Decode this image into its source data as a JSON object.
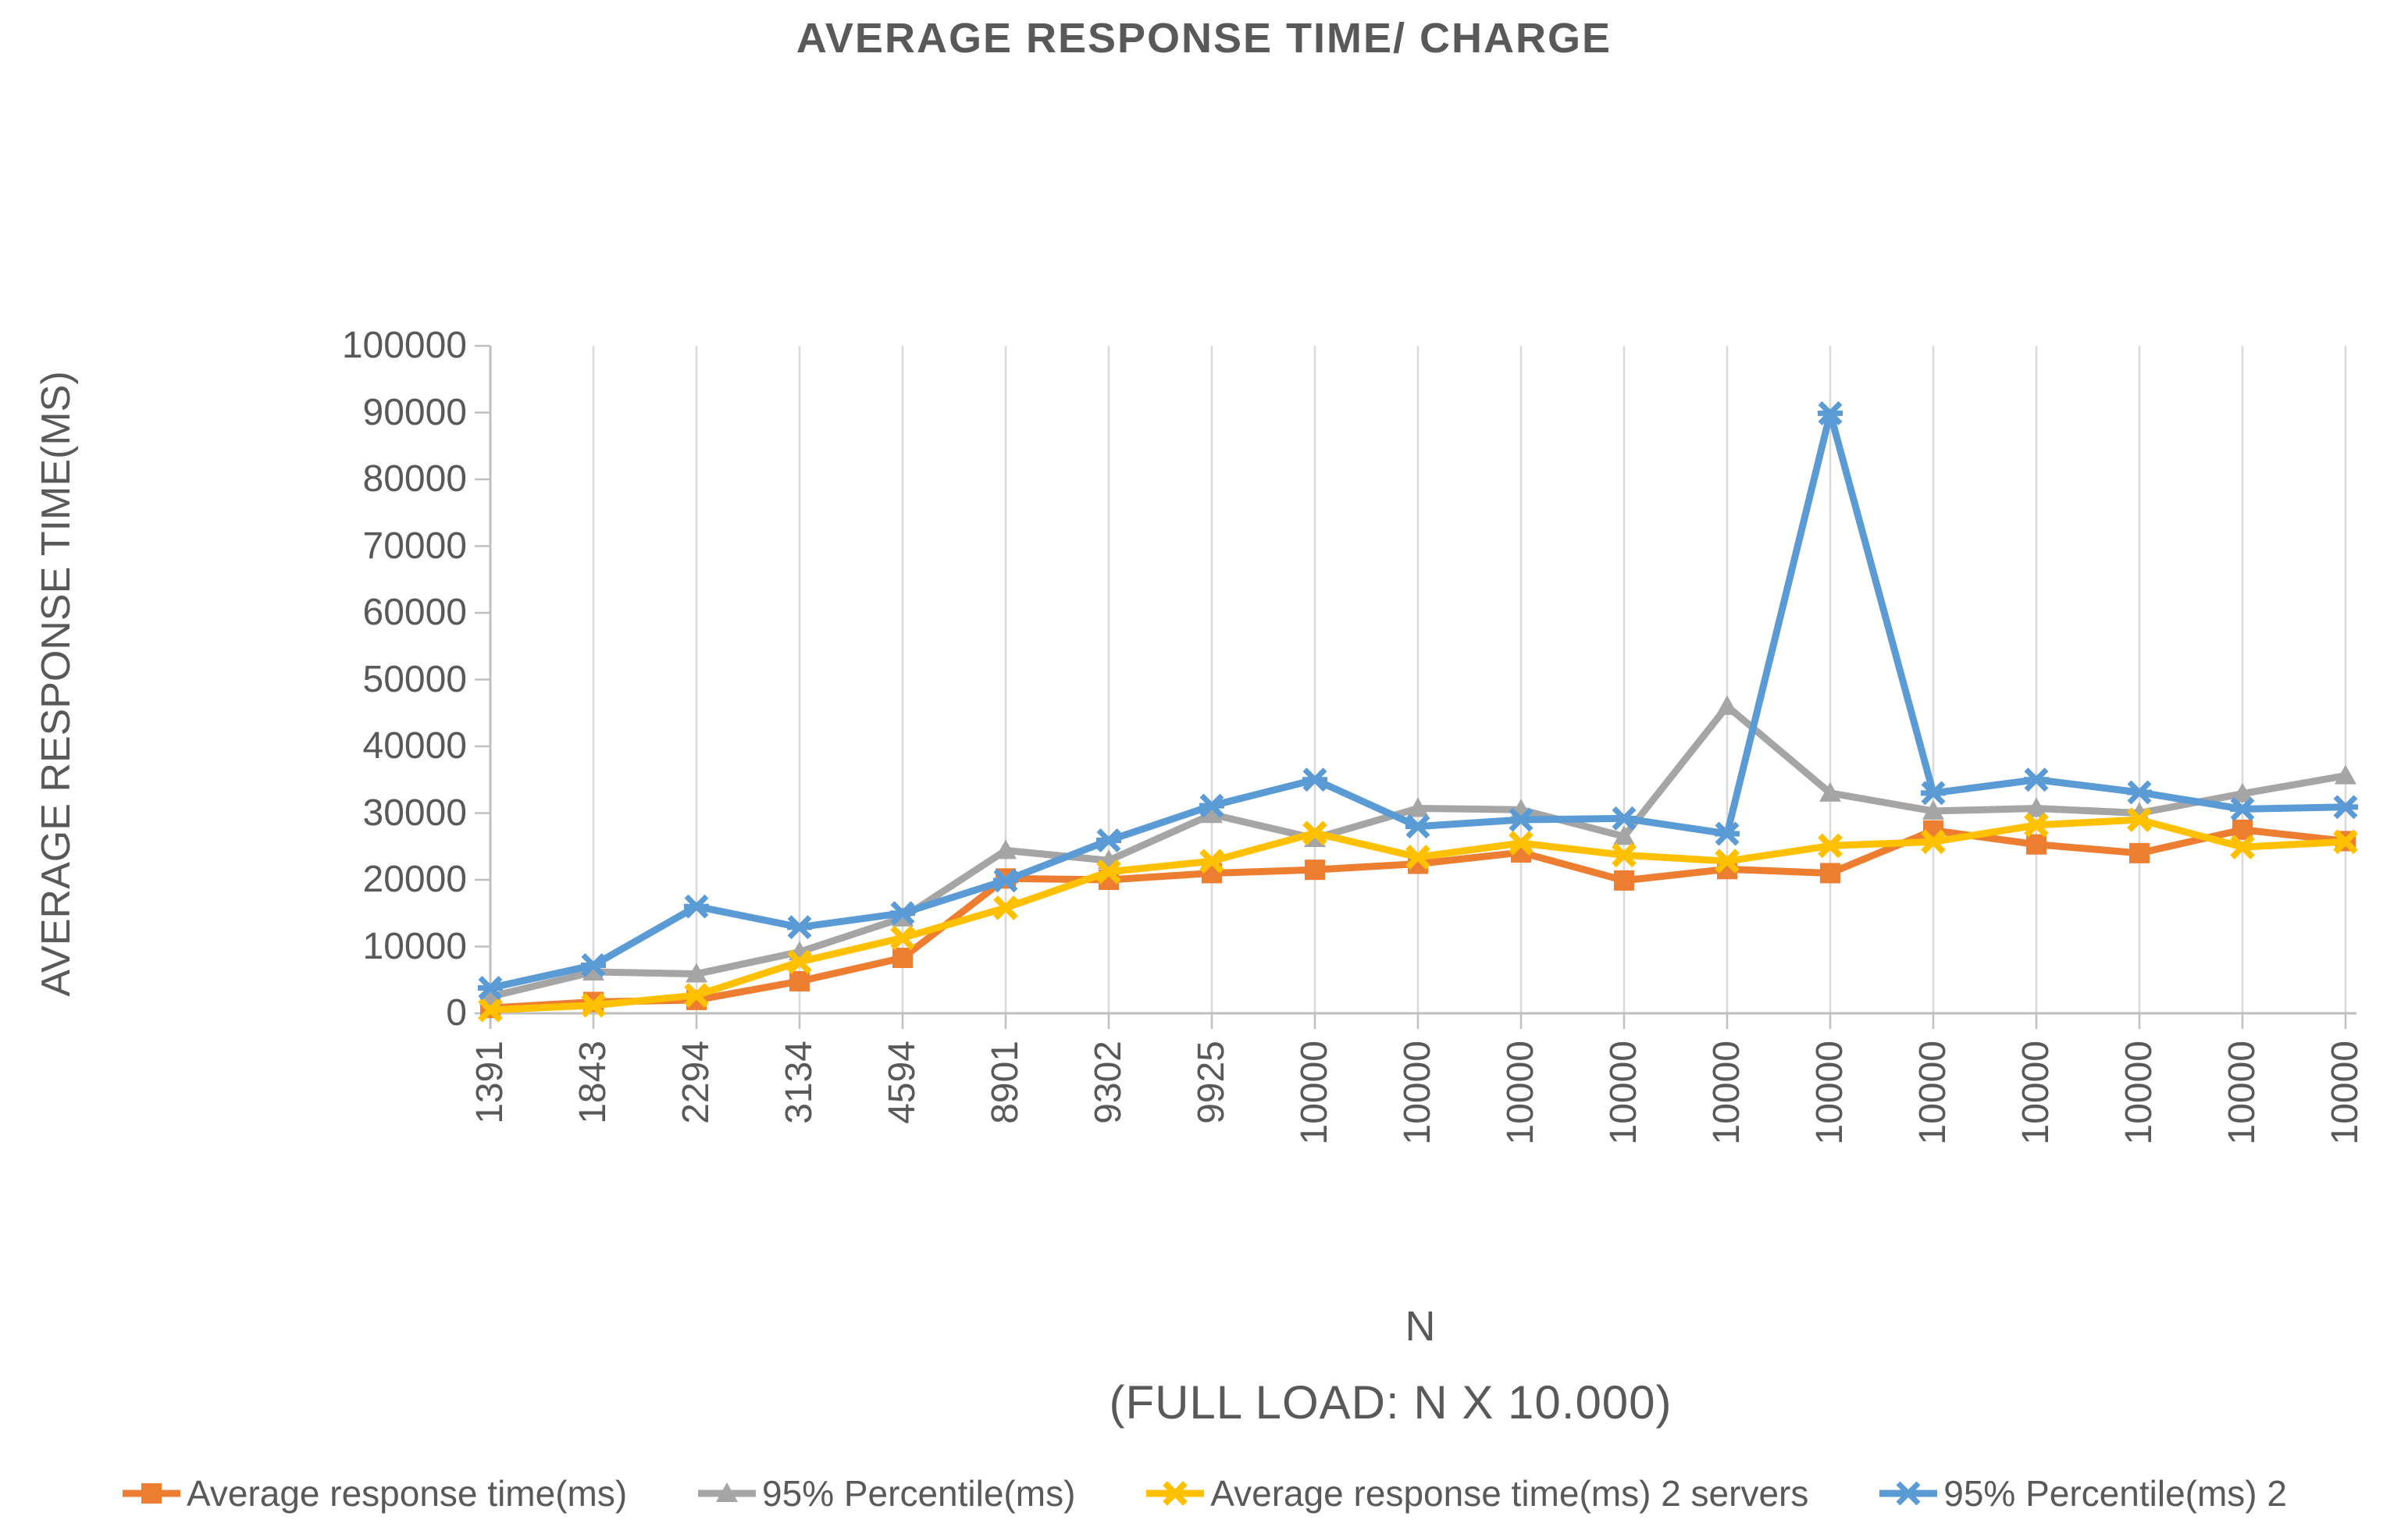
{
  "title": "AVERAGE RESPONSE TIME/ CHARGE",
  "chart_data": {
    "type": "line",
    "title": "AVERAGE RESPONSE TIME/ CHARGE",
    "ylabel": "AVERAGE RESPONSE TIME(MS)",
    "xlabel": "N",
    "xlabel_sub": "(FULL LOAD: N X 10.000)",
    "ylim": [
      0,
      100000
    ],
    "ytick_step": 10000,
    "ytick_labels": [
      "0",
      "10000",
      "20000",
      "30000",
      "40000",
      "50000",
      "60000",
      "70000",
      "80000",
      "90000",
      "100000"
    ],
    "grid": "vertical",
    "legend_position": "bottom",
    "categories": [
      "1391",
      "1843",
      "2294",
      "3134",
      "4594",
      "8901",
      "9302",
      "9925",
      "10000",
      "10000",
      "10000",
      "10000",
      "10000",
      "10000",
      "10000",
      "10000",
      "10000",
      "10000",
      "10000"
    ],
    "series": [
      {
        "name": "Average response time(ms)",
        "color": "#ED7D31",
        "marker": "square",
        "values": [
          800,
          1700,
          2000,
          4800,
          8300,
          20200,
          20000,
          21000,
          21500,
          22400,
          24100,
          19900,
          21600,
          21000,
          27400,
          25300,
          24000,
          27500,
          25800
        ]
      },
      {
        "name": "95% Percentile(ms)",
        "color": "#A5A5A5",
        "marker": "triangle",
        "values": [
          2500,
          6200,
          5900,
          9200,
          14300,
          24400,
          22900,
          29800,
          26200,
          30700,
          30500,
          26500,
          46000,
          33000,
          30300,
          30700,
          30000,
          32900,
          35600
        ]
      },
      {
        "name": "Average response time(ms) 2 servers",
        "color": "#FFC000",
        "marker": "x",
        "values": [
          500,
          1200,
          2700,
          7700,
          11300,
          15800,
          21200,
          22800,
          27000,
          23400,
          25500,
          23700,
          22800,
          25100,
          25700,
          28200,
          29000,
          24900,
          25700
        ]
      },
      {
        "name": "95% Percentile(ms) 2",
        "color": "#5B9BD5",
        "marker": "asterisk",
        "values": [
          3800,
          7200,
          16000,
          12900,
          15000,
          19900,
          25900,
          31100,
          35000,
          28000,
          29000,
          29200,
          26900,
          89900,
          33000,
          35000,
          33100,
          30600,
          30900
        ]
      }
    ],
    "text_color": "#595959",
    "grid_color": "#D9D9D9",
    "axis_color": "#BFBFBF"
  }
}
